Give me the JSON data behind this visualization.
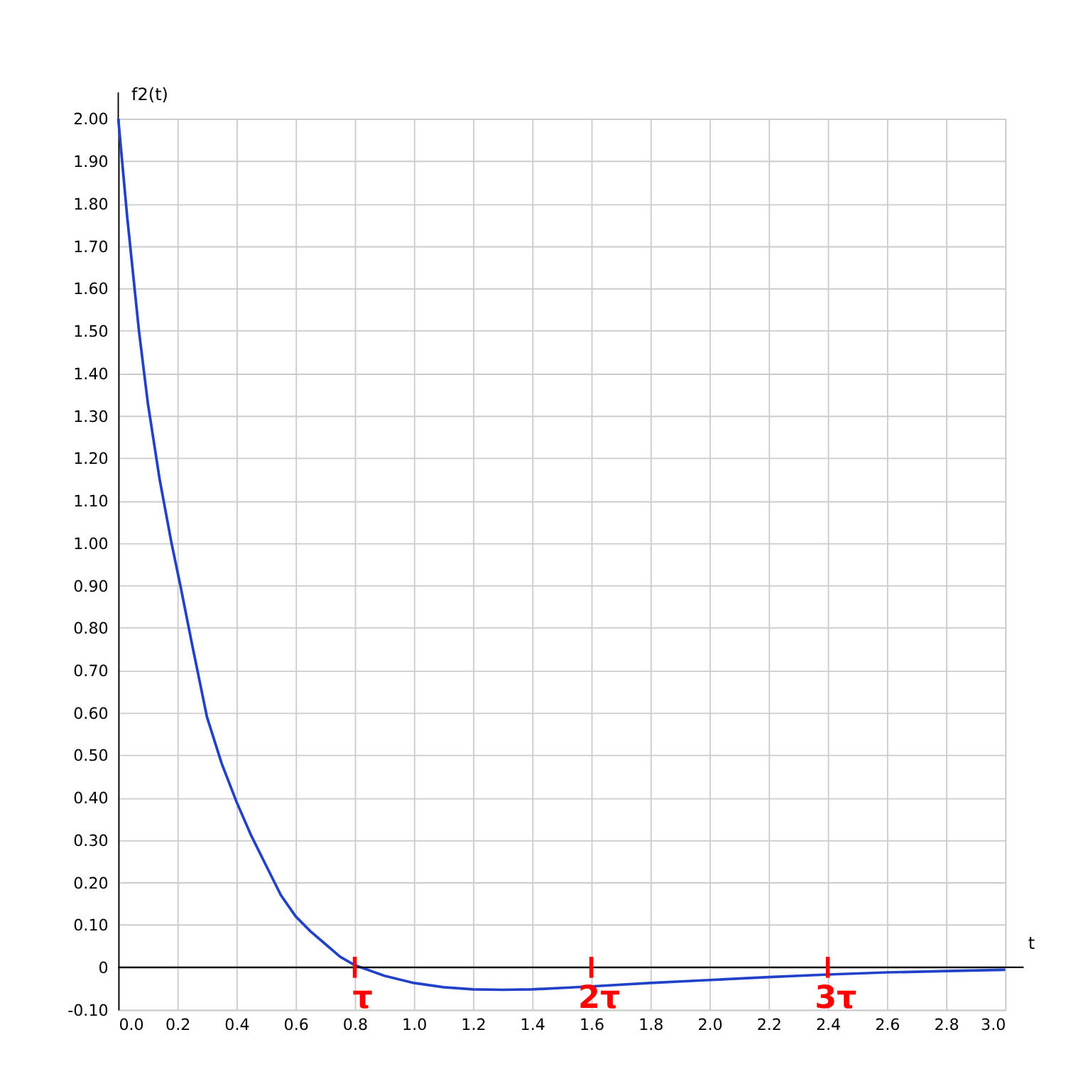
{
  "chart_data": {
    "type": "line",
    "xlabel": "t",
    "ylabel": "f2(t)",
    "x": [
      0,
      0.03,
      0.07,
      0.1,
      0.14,
      0.18,
      0.21,
      0.25,
      0.3,
      0.35,
      0.4,
      0.45,
      0.5,
      0.55,
      0.6,
      0.65,
      0.7,
      0.75,
      0.8,
      0.9,
      1.0,
      1.1,
      1.2,
      1.3,
      1.4,
      1.6,
      1.8,
      2.0,
      2.2,
      2.4,
      2.6,
      2.8,
      3.0
    ],
    "series": [
      {
        "color": "#2141c8",
        "values": [
          2.0,
          1.77,
          1.5,
          1.33,
          1.15,
          1.0,
          0.9,
          0.76,
          0.59,
          0.48,
          0.39,
          0.31,
          0.24,
          0.17,
          0.12,
          0.085,
          0.055,
          0.025,
          0.005,
          -0.02,
          -0.037,
          -0.047,
          -0.052,
          -0.053,
          -0.052,
          -0.045,
          -0.037,
          -0.03,
          -0.023,
          -0.017,
          -0.012,
          -0.009,
          -0.006
        ]
      }
    ],
    "xlim": [
      0,
      3.0
    ],
    "xticks": [
      {
        "value": 0,
        "label": "0.0"
      },
      0.2,
      0.4,
      0.6,
      0.8,
      {
        "value": 1,
        "label": "1.0"
      },
      1.2,
      1.4,
      1.6,
      1.8,
      {
        "value": 2,
        "label": "2.0"
      },
      2.2,
      2.4,
      2.6,
      2.8,
      {
        "value": 3,
        "label": "3.0"
      }
    ],
    "ylim": [
      -0.1,
      2.0
    ],
    "yticks": [
      {
        "value": -0.1,
        "label": "-0.10"
      },
      0,
      {
        "value": 0.1,
        "label": "0.10"
      },
      {
        "value": 0.2,
        "label": "0.20"
      },
      {
        "value": 0.3,
        "label": "0.30"
      },
      {
        "value": 0.4,
        "label": "0.40"
      },
      {
        "value": 0.5,
        "label": "0.50"
      },
      {
        "value": 0.6,
        "label": "0.60"
      },
      {
        "value": 0.7,
        "label": "0.70"
      },
      {
        "value": 0.8,
        "label": "0.80"
      },
      {
        "value": 0.9,
        "label": "0.90"
      },
      {
        "value": 1.0,
        "label": "1.00"
      },
      {
        "value": 1.1,
        "label": "1.10"
      },
      {
        "value": 1.2,
        "label": "1.20"
      },
      {
        "value": 1.3,
        "label": "1.30"
      },
      {
        "value": 1.4,
        "label": "1.40"
      },
      {
        "value": 1.5,
        "label": "1.50"
      },
      {
        "value": 1.6,
        "label": "1.60"
      },
      {
        "value": 1.7,
        "label": "1.70"
      },
      {
        "value": 1.8,
        "label": "1.80"
      },
      {
        "value": 1.9,
        "label": "1.90"
      },
      {
        "value": 2.0,
        "label": "2.00"
      }
    ],
    "grid": true,
    "marker": "none",
    "line_style": "solid",
    "ref_lines": [
      {
        "axis": "y",
        "value": 0,
        "color": "#000000"
      },
      {
        "axis": "x",
        "value": 0.8,
        "label": "τ",
        "color": "#ff0000"
      },
      {
        "axis": "x",
        "value": 1.6,
        "label": "2τ",
        "color": "#ff0000"
      },
      {
        "axis": "x",
        "value": 2.4,
        "label": "3τ",
        "color": "#ff0000"
      }
    ]
  }
}
